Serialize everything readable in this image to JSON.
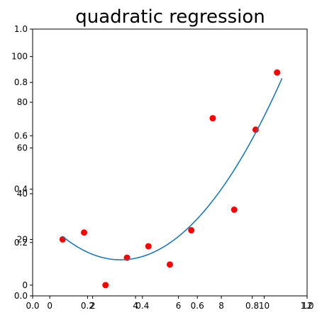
{
  "chart_data": {
    "type": "scatter",
    "title": "quadratic regression",
    "xlabel": "",
    "ylabel": "",
    "grid": false,
    "xlim": [
      0,
      12
    ],
    "ylim": [
      -5,
      112
    ],
    "x_ticks": [
      "0",
      "2",
      "4",
      "6",
      "8",
      "10",
      "12"
    ],
    "y_ticks": [
      "0",
      "20",
      "40",
      "60",
      "80",
      "100"
    ],
    "frame_ticks": [
      "0.0",
      "0.2",
      "0.4",
      "0.6",
      "0.8",
      "1.0"
    ],
    "points": [
      {
        "x": 0.6,
        "y": 20
      },
      {
        "x": 1.6,
        "y": 23
      },
      {
        "x": 2.6,
        "y": 0
      },
      {
        "x": 3.6,
        "y": 12
      },
      {
        "x": 4.6,
        "y": 17
      },
      {
        "x": 5.6,
        "y": 9
      },
      {
        "x": 6.6,
        "y": 24
      },
      {
        "x": 7.6,
        "y": 73
      },
      {
        "x": 8.6,
        "y": 33
      },
      {
        "x": 9.6,
        "y": 68
      },
      {
        "x": 10.6,
        "y": 93
      }
    ],
    "fit": {
      "a": 1.4,
      "b": -9.24,
      "c": 26.32,
      "x_range": [
        0.6,
        10.83
      ]
    },
    "colors": {
      "points": "#ff0000",
      "fit_line": "#1f77b4",
      "axes": "#000000"
    }
  }
}
